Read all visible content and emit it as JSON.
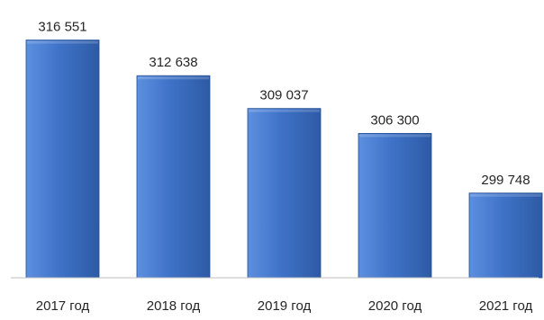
{
  "chart_data": {
    "type": "bar",
    "title": "",
    "xlabel": "",
    "ylabel": "",
    "categories": [
      "2017 год",
      "2018 год",
      "2019 год",
      "2020 год",
      "2021 год"
    ],
    "values": [
      316551,
      312638,
      309037,
      306300,
      299748
    ],
    "value_labels": [
      "316 551",
      "312 638",
      "309 037",
      "306 300",
      "299 748"
    ],
    "ylim": [
      290450,
      317000
    ],
    "grid": false,
    "legend": "none",
    "colors": {
      "bar_fill": "#3f73c8",
      "bar_light": "#5d8fdf",
      "bar_dark": "#2d5aa5",
      "bar_edge": "#234d92",
      "axis": "#bfbfbf",
      "text": "#262626"
    }
  }
}
